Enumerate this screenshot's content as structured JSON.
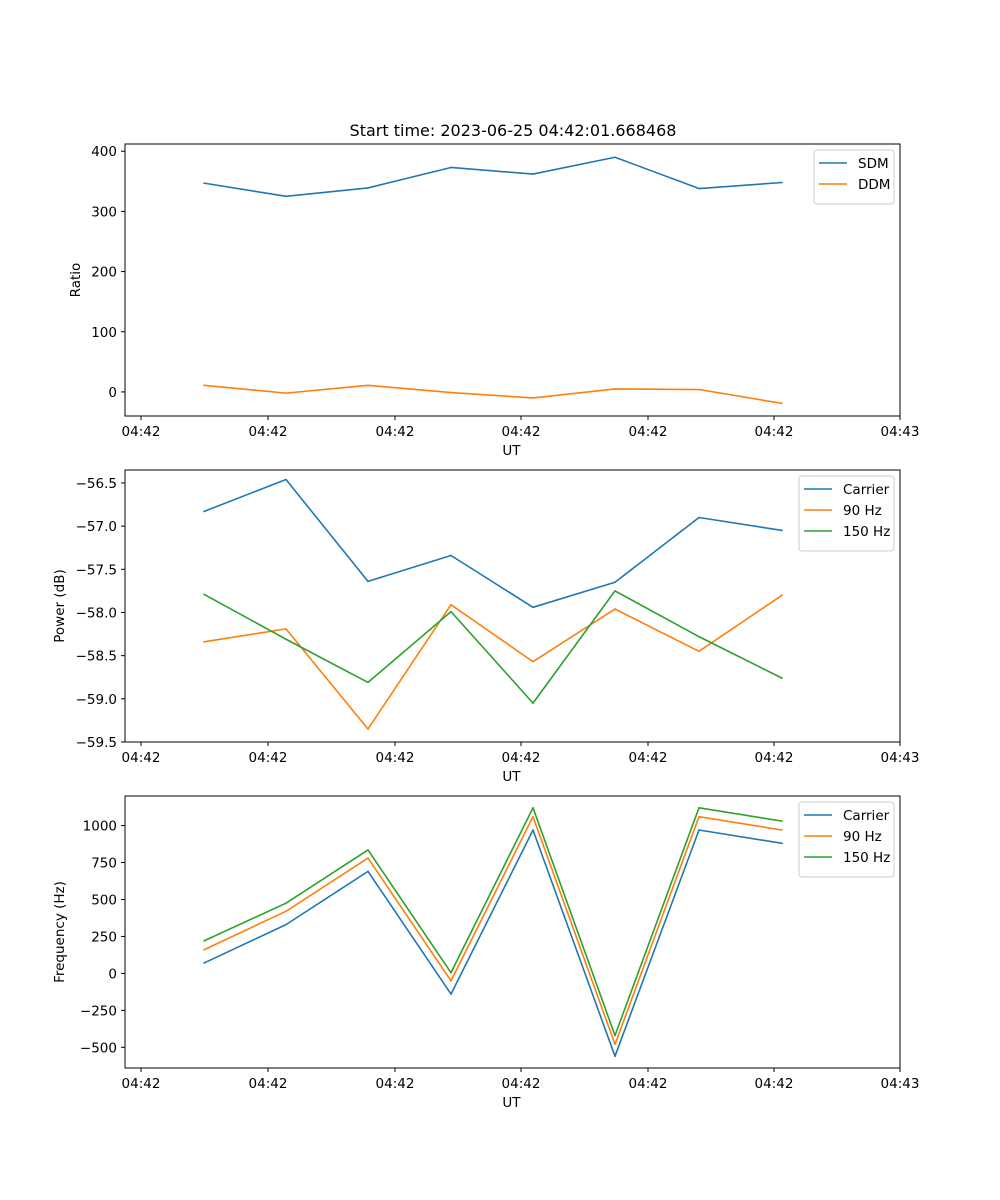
{
  "title": "Start time: 2023-06-25 04:42:01.668468",
  "colors": {
    "blue": "#1f77b4",
    "orange": "#ff7f0e",
    "green": "#2ca02c"
  },
  "chart_data": [
    {
      "type": "line",
      "ylabel": "Ratio",
      "xlabel": "UT",
      "xticks": [
        "04:42",
        "04:42",
        "04:42",
        "04:42",
        "04:42",
        "04:42",
        "04:43"
      ],
      "ylim": [
        -40,
        412
      ],
      "yticks": [
        0,
        100,
        200,
        300,
        400
      ],
      "legend": "top-right",
      "series": [
        {
          "name": "SDM",
          "color": "#1f77b4",
          "values": [
            347,
            325,
            339,
            373,
            362,
            390,
            338,
            348
          ]
        },
        {
          "name": "DDM",
          "color": "#ff7f0e",
          "values": [
            11,
            -2,
            11,
            -1,
            -10,
            5,
            4,
            -19
          ]
        }
      ]
    },
    {
      "type": "line",
      "ylabel": "Power (dB)",
      "xlabel": "UT",
      "xticks": [
        "04:42",
        "04:42",
        "04:42",
        "04:42",
        "04:42",
        "04:42",
        "04:43"
      ],
      "ylim": [
        -59.5,
        -56.35
      ],
      "yticks": [
        -59.5,
        -59.0,
        -58.5,
        -58.0,
        -57.5,
        -57.0,
        -56.5
      ],
      "ytick_labels": [
        "−59.5",
        "−59.0",
        "−58.5",
        "−58.0",
        "−57.5",
        "−57.0",
        "−56.5"
      ],
      "legend": "top-right",
      "series": [
        {
          "name": "Carrier",
          "color": "#1f77b4",
          "values": [
            -56.83,
            -56.46,
            -57.64,
            -57.34,
            -57.94,
            -57.65,
            -56.9,
            -57.05
          ]
        },
        {
          "name": "90 Hz",
          "color": "#ff7f0e",
          "values": [
            -58.34,
            -58.19,
            -59.35,
            -57.91,
            -58.57,
            -57.96,
            -58.45,
            -57.8
          ]
        },
        {
          "name": "150 Hz",
          "color": "#2ca02c",
          "values": [
            -57.79,
            -58.31,
            -58.81,
            -57.99,
            -59.05,
            -57.75,
            -58.28,
            -58.76
          ]
        }
      ]
    },
    {
      "type": "line",
      "ylabel": "Frequency (Hz)",
      "xlabel": "UT",
      "xticks": [
        "04:42",
        "04:42",
        "04:42",
        "04:42",
        "04:42",
        "04:42",
        "04:43"
      ],
      "ylim": [
        -640,
        1200
      ],
      "yticks": [
        -500,
        -250,
        0,
        250,
        500,
        750,
        1000
      ],
      "ytick_labels": [
        "−500",
        "−250",
        "0",
        "250",
        "500",
        "750",
        "1000"
      ],
      "legend": "top-right",
      "series": [
        {
          "name": "Carrier",
          "color": "#1f77b4",
          "values": [
            70,
            330,
            690,
            -140,
            970,
            -560,
            970,
            880
          ]
        },
        {
          "name": "90 Hz",
          "color": "#ff7f0e",
          "values": [
            160,
            420,
            780,
            -50,
            1060,
            -480,
            1060,
            970
          ]
        },
        {
          "name": "150 Hz",
          "color": "#2ca02c",
          "values": [
            220,
            475,
            835,
            5,
            1120,
            -420,
            1120,
            1030
          ]
        }
      ]
    }
  ]
}
